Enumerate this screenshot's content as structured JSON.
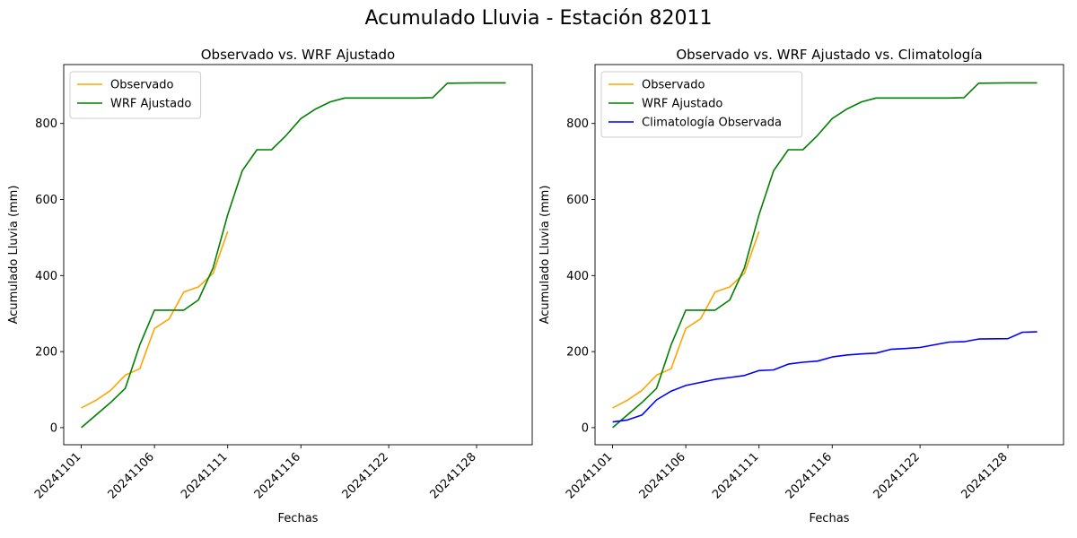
{
  "figure": {
    "suptitle": "Acumulado Lluvia - Estación 82011"
  },
  "chart_data": [
    {
      "type": "line",
      "title": "Observado vs. WRF Ajustado",
      "xlabel": "Fechas",
      "ylabel": "Acumulado Lluvia (mm)",
      "x_tick_labels": [
        "20241101",
        "20241106",
        "20241111",
        "20241116",
        "20241122",
        "20241128"
      ],
      "y_ticks": [
        0,
        200,
        400,
        600,
        800
      ],
      "ylim": [
        -45,
        955
      ],
      "legend_position": "upper left",
      "grid": false,
      "series": [
        {
          "name": "Observado",
          "color": "#ffa500",
          "x": [
            "20241101",
            "20241102",
            "20241103",
            "20241104",
            "20241105",
            "20241106",
            "20241107",
            "20241108",
            "20241109",
            "20241110",
            "20241111"
          ],
          "y": [
            52,
            72,
            98,
            138,
            155,
            261,
            286,
            357,
            370,
            406,
            516
          ]
        },
        {
          "name": "WRF Ajustado",
          "color": "#008000",
          "x": [
            "20241101",
            "20241102",
            "20241103",
            "20241104",
            "20241105",
            "20241106",
            "20241107",
            "20241108",
            "20241109",
            "20241110",
            "20241111",
            "20241112",
            "20241113",
            "20241114",
            "20241115",
            "20241116",
            "20241117",
            "20241118",
            "20241119",
            "20241120",
            "20241121",
            "20241122",
            "20241124",
            "20241125",
            "20241126",
            "20241128",
            "20241129",
            "20241130"
          ],
          "y": [
            0,
            33,
            66,
            103,
            218,
            309,
            309,
            309,
            336,
            420,
            560,
            676,
            731,
            731,
            769,
            813,
            838,
            857,
            867,
            867,
            867,
            867,
            867,
            868,
            906,
            907,
            907,
            907
          ]
        }
      ]
    },
    {
      "type": "line",
      "title": "Observado vs. WRF Ajustado vs. Climatología",
      "xlabel": "Fechas",
      "ylabel": "Acumulado Lluvia (mm)",
      "x_tick_labels": [
        "20241101",
        "20241106",
        "20241111",
        "20241116",
        "20241122",
        "20241128"
      ],
      "y_ticks": [
        0,
        200,
        400,
        600,
        800
      ],
      "ylim": [
        -45,
        955
      ],
      "legend_position": "upper left",
      "grid": false,
      "series": [
        {
          "name": "Observado",
          "color": "#ffa500",
          "x": [
            "20241101",
            "20241102",
            "20241103",
            "20241104",
            "20241105",
            "20241106",
            "20241107",
            "20241108",
            "20241109",
            "20241110",
            "20241111"
          ],
          "y": [
            52,
            72,
            98,
            138,
            155,
            261,
            286,
            357,
            370,
            406,
            516
          ]
        },
        {
          "name": "WRF Ajustado",
          "color": "#008000",
          "x": [
            "20241101",
            "20241102",
            "20241103",
            "20241104",
            "20241105",
            "20241106",
            "20241107",
            "20241108",
            "20241109",
            "20241110",
            "20241111",
            "20241112",
            "20241113",
            "20241114",
            "20241115",
            "20241116",
            "20241117",
            "20241118",
            "20241119",
            "20241120",
            "20241121",
            "20241122",
            "20241124",
            "20241125",
            "20241126",
            "20241128",
            "20241129",
            "20241130"
          ],
          "y": [
            0,
            33,
            66,
            103,
            218,
            309,
            309,
            309,
            336,
            420,
            560,
            676,
            731,
            731,
            769,
            813,
            838,
            857,
            867,
            867,
            867,
            867,
            867,
            868,
            906,
            907,
            907,
            907
          ]
        },
        {
          "name": "Climatología Observada",
          "color": "#0000ff",
          "x": [
            "20241101",
            "20241102",
            "20241103",
            "20241104",
            "20241105",
            "20241106",
            "20241107",
            "20241108",
            "20241109",
            "20241110",
            "20241111",
            "20241112",
            "20241113",
            "20241114",
            "20241115",
            "20241116",
            "20241117",
            "20241118",
            "20241119",
            "20241120",
            "20241121",
            "20241122",
            "20241124",
            "20241125",
            "20241126",
            "20241128",
            "20241129",
            "20241130"
          ],
          "y": [
            15,
            20,
            33,
            73,
            96,
            111,
            119,
            127,
            132,
            137,
            150,
            152,
            167,
            172,
            175,
            186,
            191,
            194,
            196,
            206,
            208,
            211,
            225,
            226,
            233,
            234,
            251,
            252
          ]
        }
      ]
    }
  ]
}
